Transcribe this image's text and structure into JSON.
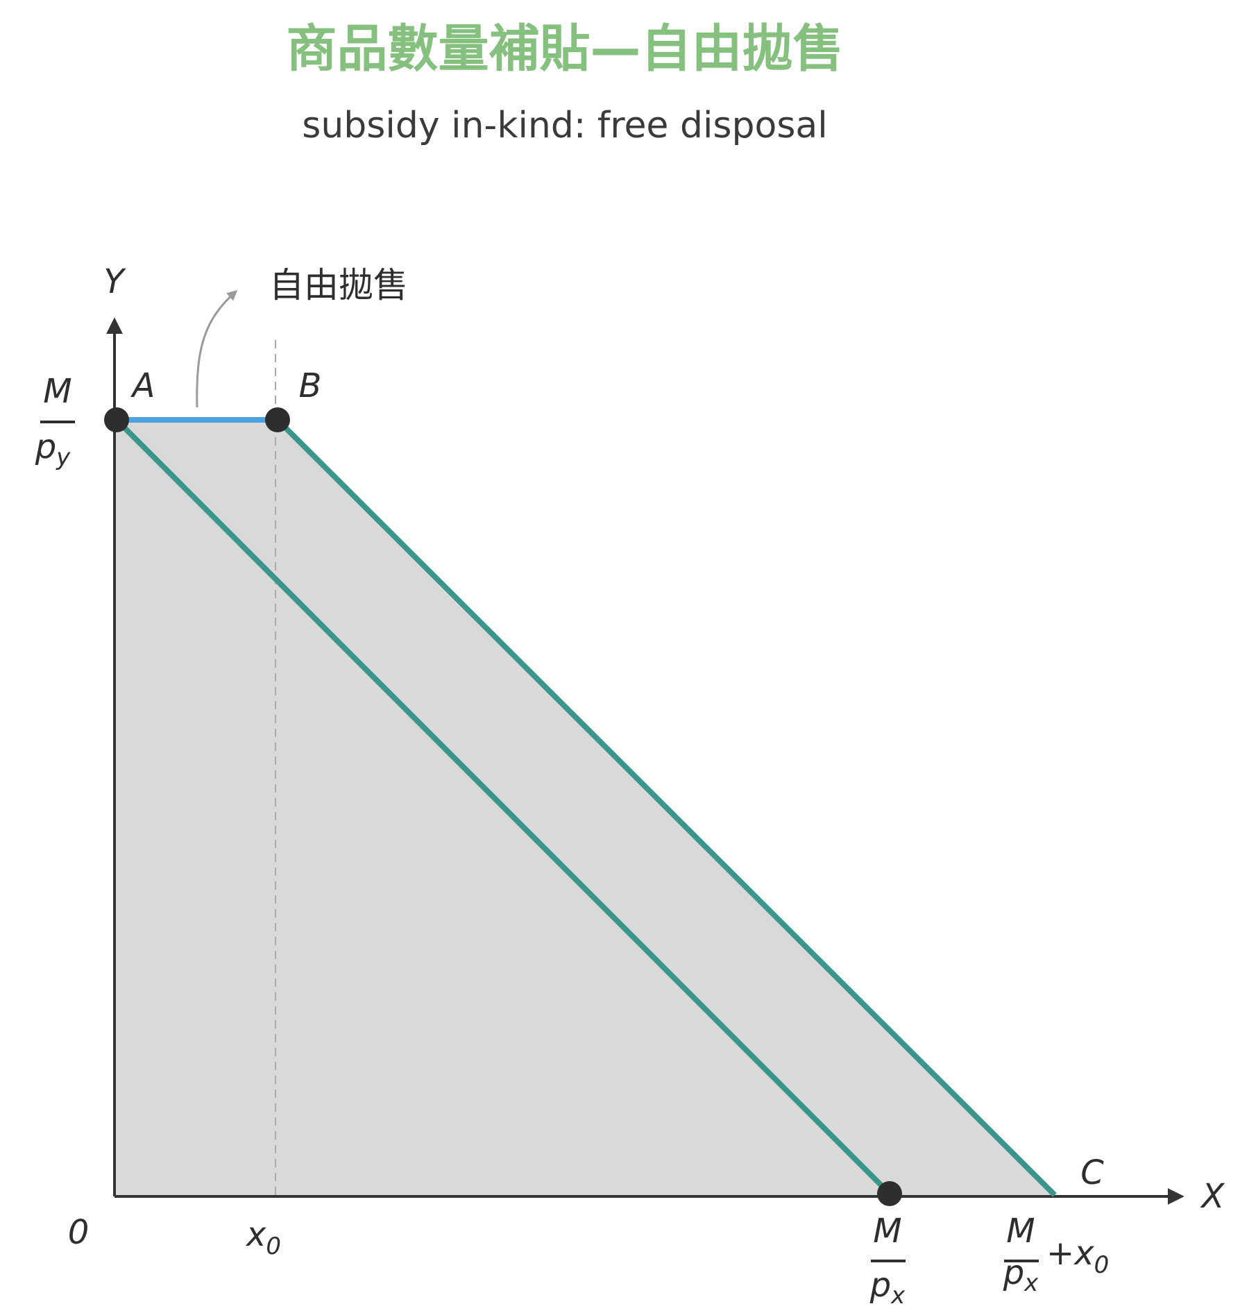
{
  "header": {
    "title": "商品數量補貼—自由拋售",
    "subtitle": "subsidy in-kind: free disposal"
  },
  "diagram": {
    "y_axis": "Y",
    "x_axis": "X",
    "origin": "0",
    "annotation": "自由拋售",
    "points": {
      "a": "A",
      "b": "B",
      "c": "C"
    },
    "y_intercept": {
      "numerator": "M",
      "denominator": "p",
      "subscript": "y"
    },
    "x0": {
      "base": "x",
      "subscript": "0"
    },
    "x_intercept": {
      "numerator": "M",
      "denominator": "p",
      "subscript": "x"
    },
    "x_intercept_shifted": {
      "numerator": "M",
      "denominator": "p",
      "subscript": "x",
      "plus": "+x",
      "plus_subscript": "0"
    }
  }
}
